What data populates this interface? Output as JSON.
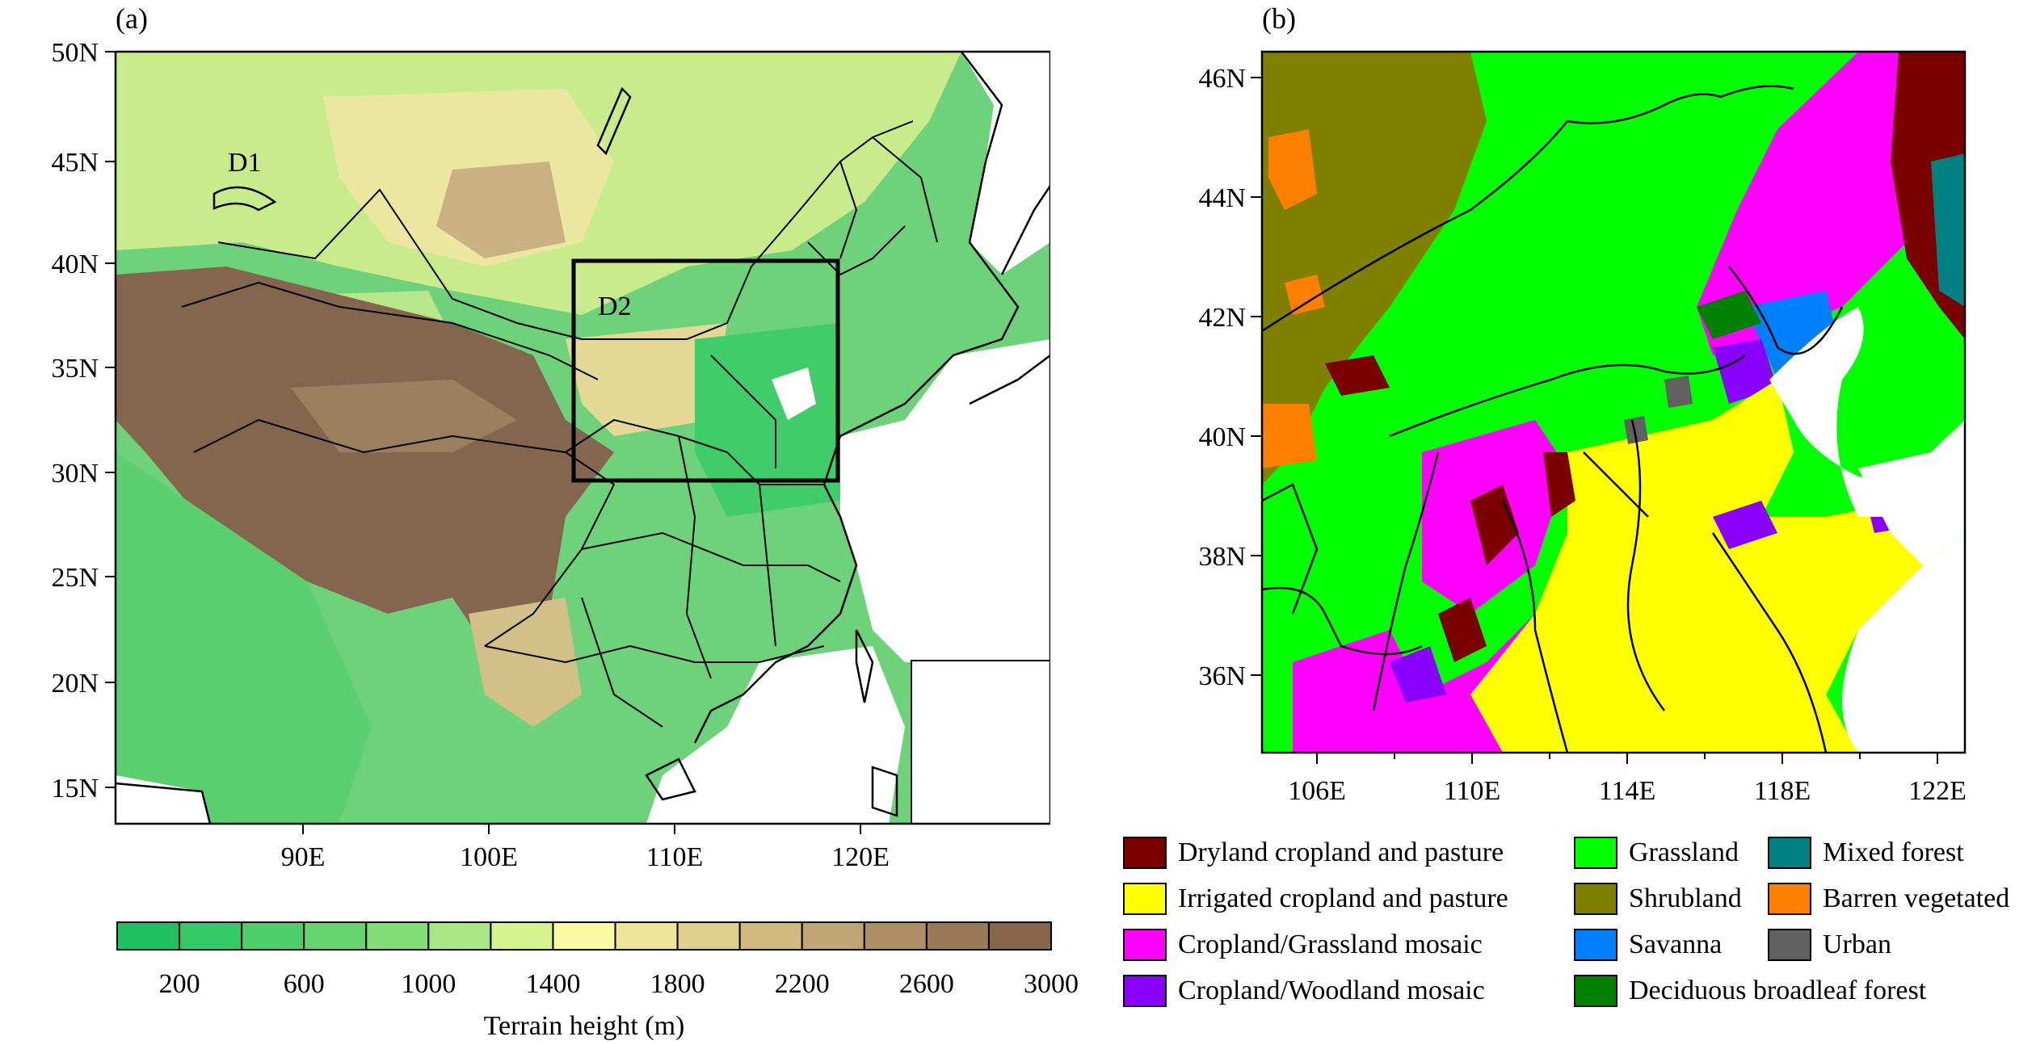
{
  "panel_a": {
    "label": "(a)",
    "lat_ticks": [
      "50N",
      "45N",
      "40N",
      "35N",
      "30N",
      "25N",
      "20N",
      "15N"
    ],
    "lon_ticks": [
      "90E",
      "100E",
      "110E",
      "120E"
    ],
    "domain_labels": [
      "D1",
      "D2"
    ],
    "colorbar": {
      "colors": [
        "#1ec061",
        "#35c866",
        "#4dce6a",
        "#66d470",
        "#82dc78",
        "#a8e784",
        "#d5f38f",
        "#fbf9a2",
        "#ede59a",
        "#dfd08e",
        "#d0ba80",
        "#bfa672",
        "#ad9064",
        "#997a58",
        "#85664d"
      ],
      "tick_labels": [
        "200",
        "600",
        "1000",
        "1400",
        "1800",
        "2200",
        "2600",
        "3000"
      ],
      "title": "Terrain height (m)"
    }
  },
  "panel_b": {
    "label": "(b)",
    "lat_ticks": [
      "46N",
      "44N",
      "42N",
      "40N",
      "38N",
      "36N"
    ],
    "lon_ticks": [
      "106E",
      "110E",
      "114E",
      "118E",
      "122E"
    ]
  },
  "legend": [
    {
      "label": "Dryland cropland and pasture",
      "color": "#7a0000"
    },
    {
      "label": "Irrigated cropland and pasture",
      "color": "#ffff00"
    },
    {
      "label": "Cropland/Grassland mosaic",
      "color": "#ff00ff"
    },
    {
      "label": "Cropland/Woodland mosaic",
      "color": "#8a00ff"
    },
    {
      "label": "Grassland",
      "color": "#00ff00"
    },
    {
      "label": "Shrubland",
      "color": "#7f7f00"
    },
    {
      "label": "Savanna",
      "color": "#0080ff"
    },
    {
      "label": "Deciduous broadleaf forest",
      "color": "#008000"
    },
    {
      "label": "Mixed forest",
      "color": "#008080"
    },
    {
      "label": "Barren vegetated",
      "color": "#ff8000"
    },
    {
      "label": "Urban",
      "color": "#606060"
    }
  ]
}
